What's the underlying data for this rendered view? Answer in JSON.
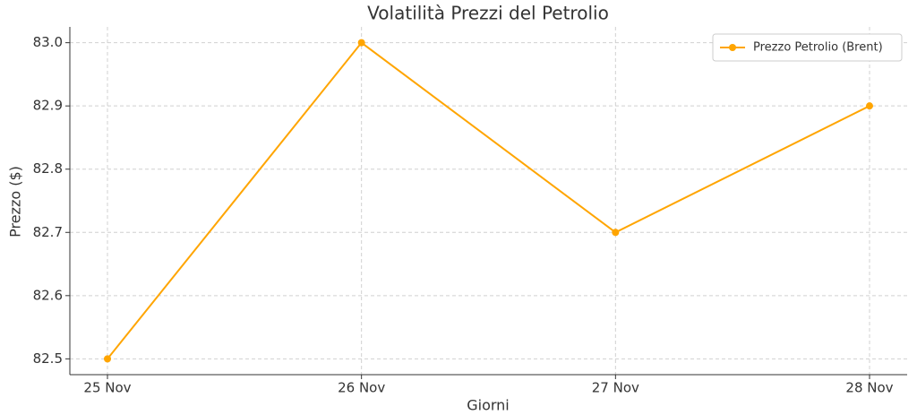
{
  "chart_data": {
    "type": "line",
    "title": "Volatilità Prezzi del Petrolio",
    "x_label": "Giorni",
    "y_label": "Prezzo ($)",
    "categories": [
      "25 Nov",
      "26 Nov",
      "27 Nov",
      "28 Nov"
    ],
    "series": [
      {
        "name": "Prezzo Petrolio (Brent)",
        "color": "#ffa500",
        "values": [
          82.5,
          83.0,
          82.7,
          82.9
        ]
      }
    ],
    "ylim": [
      82.475,
      83.025
    ],
    "yticks": [
      82.5,
      82.6,
      82.7,
      82.8,
      82.9,
      {
        "value": 83.0,
        "label": "83.0"
      }
    ],
    "grid": true,
    "legend": "upper right"
  }
}
